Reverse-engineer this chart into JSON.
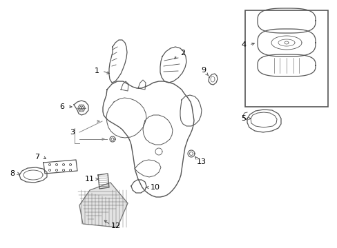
{
  "bg_color": "#ffffff",
  "line_color": "#555555",
  "label_color": "#000000",
  "figsize": [
    4.89,
    3.6
  ],
  "dpi": 100,
  "xlim": [
    0,
    489
  ],
  "ylim": [
    0,
    360
  ]
}
